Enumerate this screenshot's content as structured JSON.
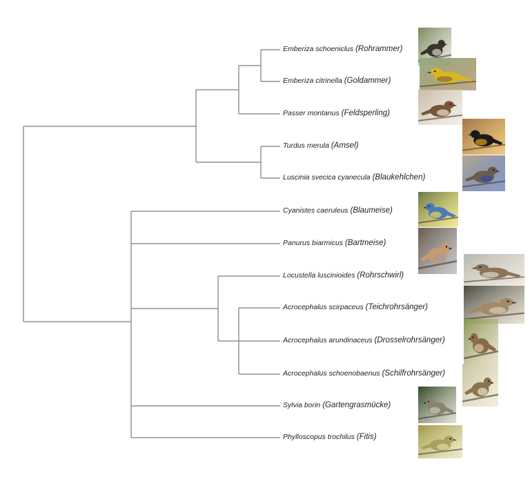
{
  "taxa": [
    {
      "id": "rohrammer",
      "scientific": "Emberiza schoeniclus",
      "common": "(Rohrammer)",
      "photo": {
        "bg": "#7a8a5a",
        "bird": "#3a3530",
        "accent": "#d8d4c8",
        "icon": "reed-bunting-photo"
      }
    },
    {
      "id": "goldammer",
      "scientific": "Emberiza citrinella",
      "common": "(Goldammer)",
      "photo": {
        "bg": "#98b088",
        "bird": "#d9b81f",
        "accent": "#8a6a30",
        "icon": "yellowhammer-photo"
      }
    },
    {
      "id": "feldsperling",
      "scientific": "Passer montanus",
      "common": "(Feldsperling)",
      "photo": {
        "bg": "#c8bba8",
        "bird": "#7a5535",
        "accent": "#e8e2d6",
        "icon": "tree-sparrow-photo"
      }
    },
    {
      "id": "amsel",
      "scientific": "Turdus merula",
      "common": "(Amsel)",
      "photo": {
        "bg": "#a07850",
        "bird": "#1a1a1a",
        "accent": "#e0a020",
        "icon": "blackbird-photo"
      }
    },
    {
      "id": "blaukehlchen",
      "scientific": "Luscinia svecica cyanecula",
      "common": "(Blaukehlchen)",
      "photo": {
        "bg": "#b5a890",
        "bird": "#6a5c4c",
        "accent": "#2f4fa0",
        "icon": "bluethroat-photo"
      }
    },
    {
      "id": "blaumeise",
      "scientific": "Cyanistes caeruleus",
      "common": "(Blaumeise)",
      "photo": {
        "bg": "#6a7848",
        "bird": "#4a7ab8",
        "accent": "#e8d84a",
        "icon": "blue-tit-photo"
      }
    },
    {
      "id": "bartmeise",
      "scientific": "Panurus biarmicus",
      "common": "(Bartmeise)",
      "photo": {
        "bg": "#6a5a4a",
        "bird": "#c89a70",
        "accent": "#9aa0a8",
        "icon": "bearded-reedling-photo"
      }
    },
    {
      "id": "rohrschwirl",
      "scientific": "Locustella luscinioides",
      "common": "(Rohrschwirl)",
      "photo": {
        "bg": "#b8b8b0",
        "bird": "#8a7358",
        "accent": "#e0d8c8",
        "icon": "savis-warbler-photo"
      }
    },
    {
      "id": "teichrohrsaenger",
      "scientific": "Acrocephalus scirpaceus",
      "common": "(Teichrohrsänger)",
      "photo": {
        "bg": "#4a4a42",
        "bird": "#a08a68",
        "accent": "#d8ccb4",
        "icon": "reed-warbler-photo"
      }
    },
    {
      "id": "drosselrohrsaenger",
      "scientific": "Acrocephalus arundinaceus",
      "common": "(Drosselrohrsänger)",
      "photo": {
        "bg": "#8a9a58",
        "bird": "#8a6a48",
        "accent": "#d8c8a8",
        "icon": "great-reed-warbler-photo"
      }
    },
    {
      "id": "schilfrohrsaenger",
      "scientific": "Acrocephalus schoenobaenus",
      "common": "(Schilfrohrsänger)",
      "photo": {
        "bg": "#c8c4a0",
        "bird": "#8a7450",
        "accent": "#eae2c8",
        "icon": "sedge-warbler-photo"
      }
    },
    {
      "id": "gartengrasmuecke",
      "scientific": "Sylvia borin",
      "common": "(Gartengrasmücke)",
      "photo": {
        "bg": "#2e4a22",
        "bird": "#8a8270",
        "accent": "#c8c4b4",
        "icon": "garden-warbler-photo"
      }
    },
    {
      "id": "fitis",
      "scientific": "Phylloscopus trochilus",
      "common": "(Fitis)",
      "photo": {
        "bg": "#a09848",
        "bird": "#a8a060",
        "accent": "#e0dca0",
        "icon": "willow-warbler-photo"
      }
    }
  ]
}
